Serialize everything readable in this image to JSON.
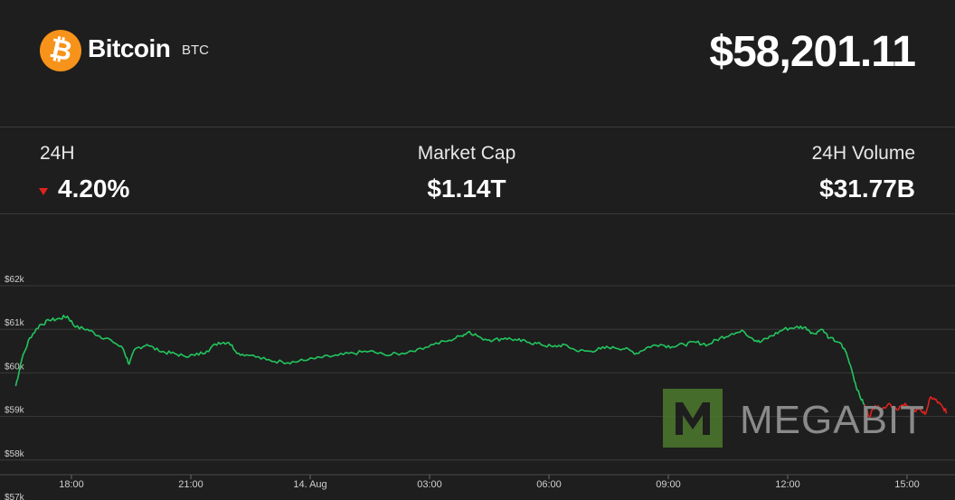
{
  "coin": {
    "name": "Bitcoin",
    "symbol": "BTC",
    "logo_glyph": "₿",
    "logo_color": "#f7931a"
  },
  "price": "$58,201.11",
  "stats": {
    "change": {
      "label": "24H",
      "value": "4.20%",
      "direction": "down",
      "color": "#e0221e"
    },
    "market_cap": {
      "label": "Market Cap",
      "value": "$1.14T"
    },
    "volume": {
      "label": "24H Volume",
      "value": "$31.77B"
    }
  },
  "watermark": {
    "text": "MEGABIT",
    "logo_letter": "M"
  },
  "chart_data": {
    "type": "line",
    "ylim": [
      56900,
      62300
    ],
    "y_ticks": [
      {
        "value": 62000,
        "label": "$62k"
      },
      {
        "value": 61000,
        "label": "$61k"
      },
      {
        "value": 60000,
        "label": "$60k"
      },
      {
        "value": 59000,
        "label": "$59k"
      },
      {
        "value": 58000,
        "label": "$58k"
      },
      {
        "value": 57000,
        "label": "$57k"
      }
    ],
    "xlim": [
      16.6,
      16.0
    ],
    "x_ticks_note": "hours, continuous from 13 Aug 16:36 to 14 Aug 16:00",
    "x_ticks": [
      {
        "value": 18,
        "label": "18:00"
      },
      {
        "value": 21,
        "label": "21:00"
      },
      {
        "value": 24,
        "label": "14. Aug"
      },
      {
        "value": 27,
        "label": "03:00"
      },
      {
        "value": 30,
        "label": "06:00"
      },
      {
        "value": 33,
        "label": "09:00"
      },
      {
        "value": 36,
        "label": "12:00"
      },
      {
        "value": 39,
        "label": "15:00"
      }
    ],
    "grid": true,
    "series": [
      {
        "color_up": "#22c55e",
        "color_down": "#e0221e",
        "points": [
          [
            16.6,
            59700
          ],
          [
            16.75,
            60300
          ],
          [
            16.95,
            60800
          ],
          [
            17.2,
            61100
          ],
          [
            17.45,
            61200
          ],
          [
            17.7,
            61250
          ],
          [
            17.9,
            61300
          ],
          [
            18.1,
            61050
          ],
          [
            18.4,
            61000
          ],
          [
            18.7,
            60850
          ],
          [
            19.0,
            60750
          ],
          [
            19.3,
            60550
          ],
          [
            19.45,
            60200
          ],
          [
            19.6,
            60550
          ],
          [
            19.9,
            60650
          ],
          [
            20.2,
            60500
          ],
          [
            20.5,
            60450
          ],
          [
            20.8,
            60400
          ],
          [
            21.1,
            60400
          ],
          [
            21.4,
            60500
          ],
          [
            21.7,
            60700
          ],
          [
            21.95,
            60700
          ],
          [
            22.2,
            60450
          ],
          [
            22.5,
            60400
          ],
          [
            22.9,
            60300
          ],
          [
            23.3,
            60250
          ],
          [
            23.6,
            60250
          ],
          [
            23.95,
            60300
          ],
          [
            24.3,
            60350
          ],
          [
            24.7,
            60400
          ],
          [
            25.1,
            60450
          ],
          [
            25.5,
            60500
          ],
          [
            25.9,
            60400
          ],
          [
            26.3,
            60450
          ],
          [
            26.7,
            60550
          ],
          [
            27.1,
            60650
          ],
          [
            27.5,
            60750
          ],
          [
            27.8,
            60850
          ],
          [
            28.0,
            60950
          ],
          [
            28.3,
            60800
          ],
          [
            28.6,
            60750
          ],
          [
            28.9,
            60800
          ],
          [
            29.2,
            60750
          ],
          [
            29.5,
            60700
          ],
          [
            29.8,
            60650
          ],
          [
            30.1,
            60600
          ],
          [
            30.4,
            60650
          ],
          [
            30.7,
            60500
          ],
          [
            31.0,
            60500
          ],
          [
            31.3,
            60550
          ],
          [
            31.6,
            60600
          ],
          [
            31.9,
            60550
          ],
          [
            32.2,
            60450
          ],
          [
            32.5,
            60600
          ],
          [
            32.8,
            60650
          ],
          [
            33.1,
            60600
          ],
          [
            33.4,
            60650
          ],
          [
            33.7,
            60700
          ],
          [
            34.0,
            60650
          ],
          [
            34.3,
            60800
          ],
          [
            34.6,
            60900
          ],
          [
            34.9,
            60950
          ],
          [
            35.1,
            60800
          ],
          [
            35.3,
            60700
          ],
          [
            35.6,
            60850
          ],
          [
            35.9,
            61000
          ],
          [
            36.2,
            61050
          ],
          [
            36.45,
            61050
          ],
          [
            36.65,
            60900
          ],
          [
            36.85,
            61000
          ],
          [
            37.05,
            60800
          ],
          [
            37.3,
            60700
          ],
          [
            37.45,
            60500
          ],
          [
            37.6,
            60100
          ],
          [
            37.75,
            59600
          ],
          [
            37.9,
            59300
          ],
          [
            38.05,
            59000
          ],
          [
            38.2,
            59250
          ],
          [
            38.35,
            59150
          ],
          [
            38.55,
            59300
          ],
          [
            38.75,
            59150
          ],
          [
            38.95,
            59300
          ],
          [
            39.15,
            59100
          ],
          [
            39.3,
            59200
          ],
          [
            39.45,
            59050
          ],
          [
            39.6,
            59450
          ],
          [
            39.75,
            59350
          ],
          [
            39.9,
            59200
          ],
          [
            40.0,
            59100
          ]
        ]
      }
    ]
  }
}
